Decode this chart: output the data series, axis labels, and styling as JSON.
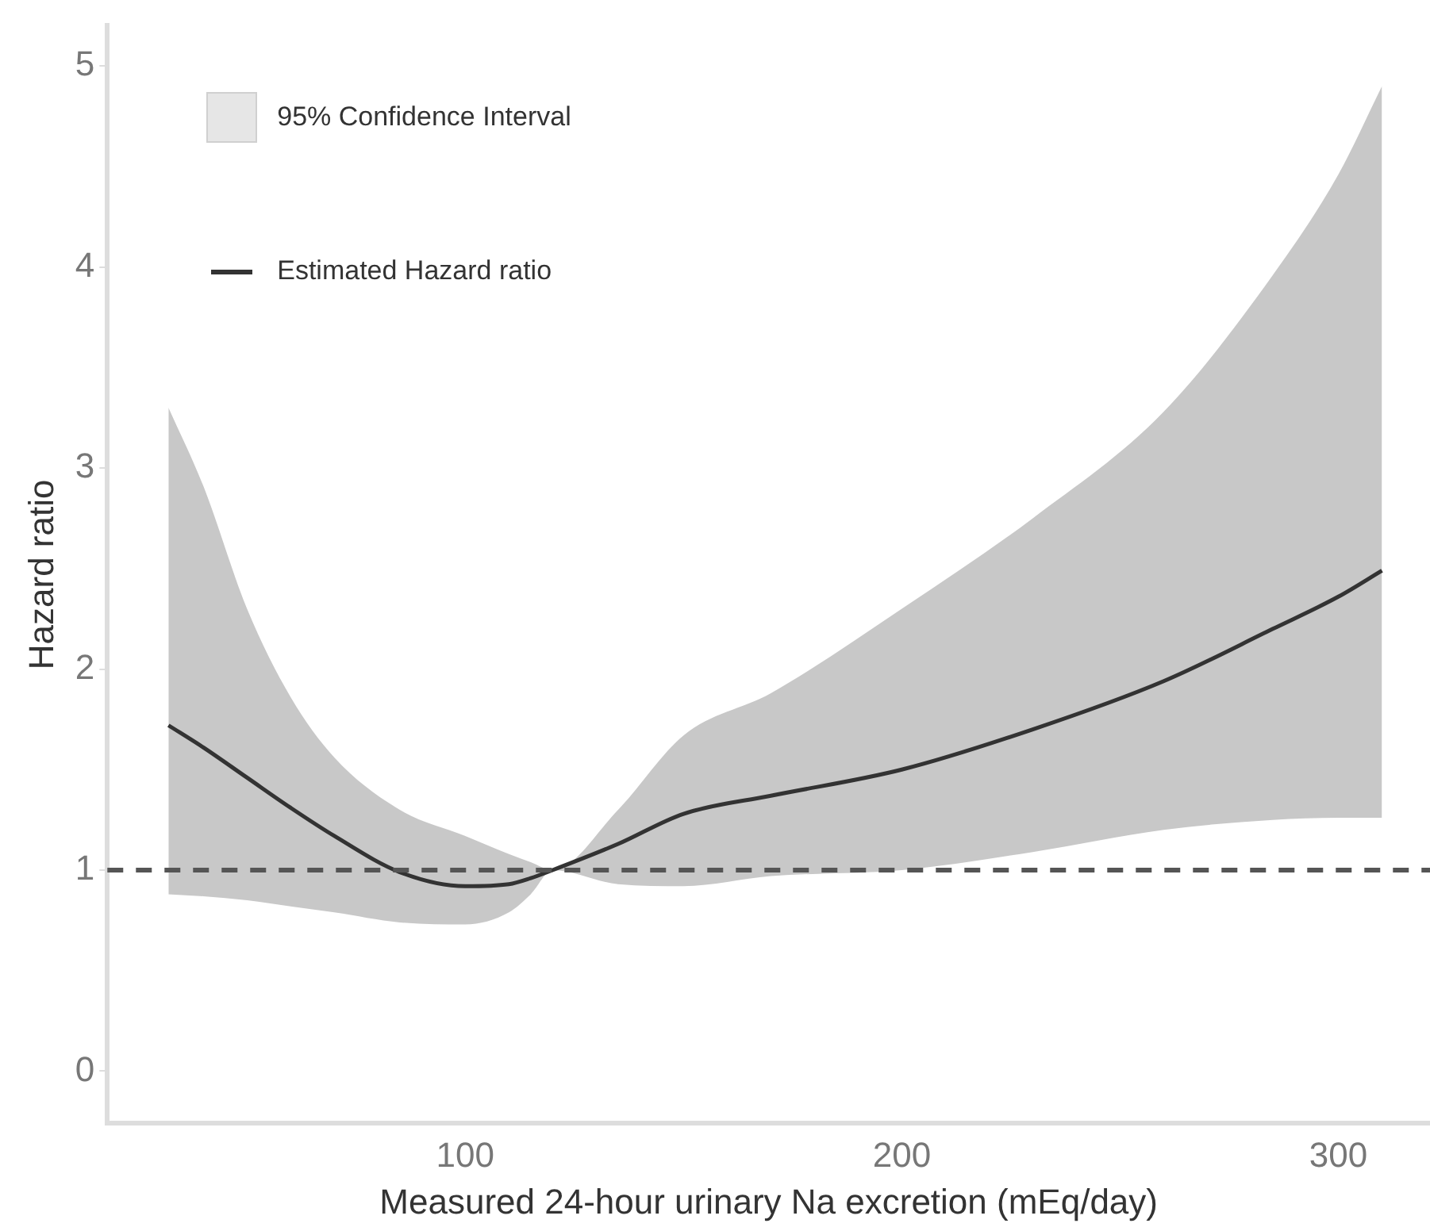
{
  "chart_data": {
    "type": "line",
    "xlabel": "Measured 24-hour urinary Na excretion (mEq/day)",
    "ylabel": "Hazard ratio",
    "x": [
      32,
      40,
      50,
      60,
      70,
      85,
      100,
      110,
      115,
      120,
      135,
      150,
      170,
      200,
      230,
      260,
      285,
      300,
      310
    ],
    "series": [
      {
        "name": "Estimated Hazard ratio",
        "color": "#333333",
        "values": [
          1.72,
          1.61,
          1.46,
          1.31,
          1.17,
          0.99,
          0.92,
          0.93,
          0.96,
          1.0,
          1.13,
          1.28,
          1.37,
          1.5,
          1.7,
          1.94,
          2.2,
          2.36,
          2.49
        ],
        "lower": [
          0.88,
          0.87,
          0.85,
          0.82,
          0.79,
          0.74,
          0.73,
          0.79,
          0.88,
          1.0,
          0.93,
          0.92,
          0.97,
          1.0,
          1.09,
          1.2,
          1.25,
          1.26,
          1.26
        ],
        "upper": [
          3.3,
          2.91,
          2.3,
          1.86,
          1.56,
          1.3,
          1.17,
          1.08,
          1.04,
          1.0,
          1.3,
          1.67,
          1.88,
          2.3,
          2.75,
          3.28,
          3.96,
          4.46,
          4.9
        ]
      }
    ],
    "annotations": [
      "95% Confidence Interval"
    ],
    "ref_lines": [
      {
        "axis": "y",
        "value": 1,
        "color": "#555555",
        "line_style": "dashed"
      }
    ],
    "xlim": [
      18,
      321
    ],
    "xticks": [
      100,
      200,
      300
    ],
    "ylim": [
      -0.26,
      5.2
    ],
    "yticks": [
      0,
      1,
      2,
      3,
      4,
      5
    ],
    "grid": false,
    "legend": "top left",
    "marker": "none",
    "line_style": "solid"
  }
}
